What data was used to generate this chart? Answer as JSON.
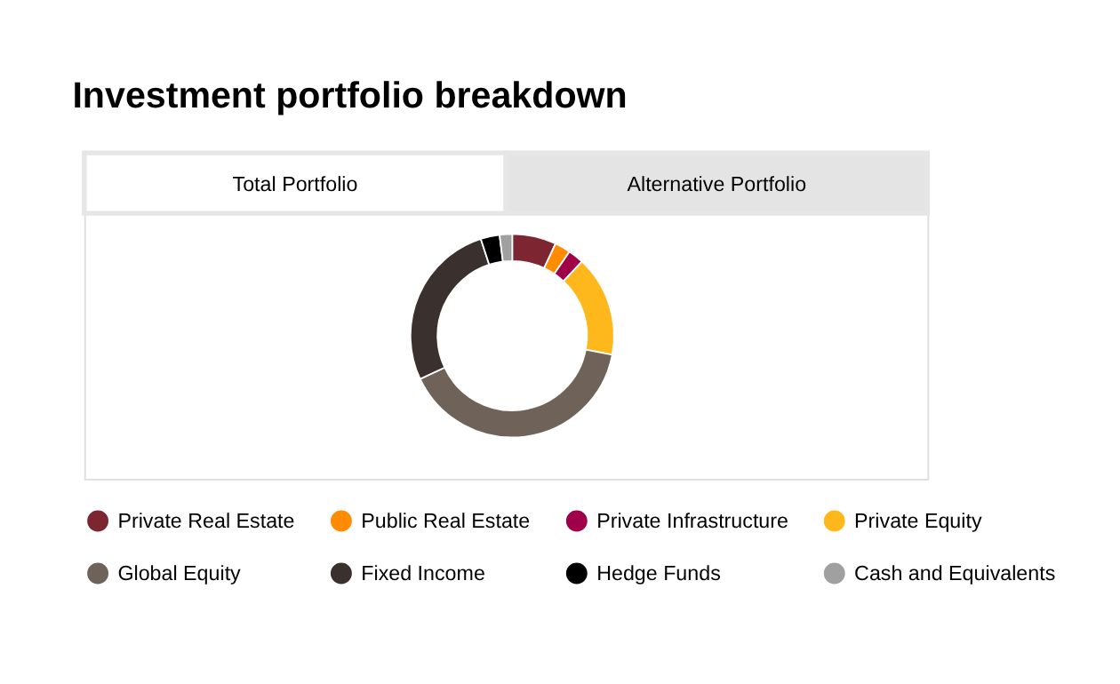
{
  "chart_data": {
    "type": "donut",
    "title": "Investment portfolio breakdown",
    "annotations": [
      "Total Portfolio",
      "Alternative Portfolio"
    ],
    "categories": [
      "Private Real Estate",
      "Public Real Estate",
      "Private Infrastructure",
      "Private Equity",
      "Global Equity",
      "Fixed Income",
      "Hedge Funds",
      "Cash and Equivalents"
    ],
    "values": [
      7,
      2.5,
      2.5,
      16,
      40,
      27,
      3,
      2
    ],
    "colors": [
      "#7b2630",
      "#ff8c00",
      "#a0004a",
      "#ffb81c",
      "#6e6259",
      "#3a302d",
      "#000000",
      "#a0a0a0"
    ],
    "legend": "bottom"
  }
}
